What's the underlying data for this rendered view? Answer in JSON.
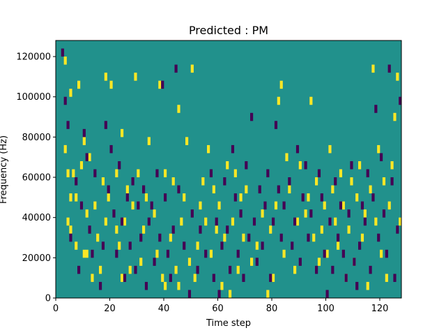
{
  "chart_data": {
    "type": "heatmap",
    "title": "Predicted : PM",
    "xlabel": "Time step",
    "ylabel": "Frequency (Hz)",
    "xlim": [
      0,
      128
    ],
    "ylim": [
      0,
      128000
    ],
    "xticks": [
      0,
      20,
      40,
      60,
      80,
      100,
      120
    ],
    "yticks": [
      0,
      20000,
      40000,
      60000,
      80000,
      100000,
      120000
    ],
    "grid": false,
    "legend": "none",
    "colormap": "viridis",
    "levels": {
      "background": 0,
      "high": 1,
      "low": -1
    },
    "colors": {
      "background": "#21918c",
      "high": "#fde725",
      "low": "#440154"
    },
    "cell_size": {
      "time_steps": 1,
      "frequency_hz": 4000
    },
    "high_cells": [
      [
        3,
        116000
      ],
      [
        3,
        72000
      ],
      [
        4,
        60000
      ],
      [
        4,
        36000
      ],
      [
        5,
        48000
      ],
      [
        5,
        32000
      ],
      [
        5,
        100000
      ],
      [
        6,
        60000
      ],
      [
        7,
        48000
      ],
      [
        7,
        24000
      ],
      [
        8,
        104000
      ],
      [
        9,
        64000
      ],
      [
        10,
        20000
      ],
      [
        10,
        76000
      ],
      [
        11,
        20000
      ],
      [
        11,
        40000
      ],
      [
        12,
        68000
      ],
      [
        13,
        8000
      ],
      [
        14,
        44000
      ],
      [
        15,
        28000
      ],
      [
        16,
        12000
      ],
      [
        17,
        56000
      ],
      [
        18,
        36000
      ],
      [
        18,
        108000
      ],
      [
        19,
        48000
      ],
      [
        20,
        104000
      ],
      [
        22,
        32000
      ],
      [
        22,
        60000
      ],
      [
        23,
        24000
      ],
      [
        24,
        8000
      ],
      [
        24,
        80000
      ],
      [
        25,
        36000
      ],
      [
        26,
        52000
      ],
      [
        27,
        12000
      ],
      [
        28,
        44000
      ],
      [
        29,
        108000
      ],
      [
        30,
        60000
      ],
      [
        31,
        16000
      ],
      [
        32,
        32000
      ],
      [
        33,
        48000
      ],
      [
        34,
        76000
      ],
      [
        36,
        40000
      ],
      [
        37,
        20000
      ],
      [
        38,
        104000
      ],
      [
        39,
        8000
      ],
      [
        40,
        4000
      ],
      [
        40,
        60000
      ],
      [
        42,
        28000
      ],
      [
        43,
        56000
      ],
      [
        44,
        12000
      ],
      [
        45,
        4000
      ],
      [
        45,
        92000
      ],
      [
        46,
        36000
      ],
      [
        47,
        48000
      ],
      [
        48,
        76000
      ],
      [
        49,
        16000
      ],
      [
        50,
        112000
      ],
      [
        51,
        8000
      ],
      [
        52,
        24000
      ],
      [
        53,
        44000
      ],
      [
        54,
        56000
      ],
      [
        55,
        36000
      ],
      [
        56,
        72000
      ],
      [
        57,
        20000
      ],
      [
        58,
        52000
      ],
      [
        59,
        32000
      ],
      [
        60,
        44000
      ],
      [
        61,
        4000
      ],
      [
        62,
        28000
      ],
      [
        63,
        64000
      ],
      [
        64,
        0
      ],
      [
        65,
        36000
      ],
      [
        66,
        60000
      ],
      [
        67,
        12000
      ],
      [
        68,
        48000
      ],
      [
        69,
        28000
      ],
      [
        70,
        52000
      ],
      [
        72,
        16000
      ],
      [
        74,
        24000
      ],
      [
        76,
        40000
      ],
      [
        78,
        0
      ],
      [
        79,
        32000
      ],
      [
        80,
        8000
      ],
      [
        81,
        44000
      ],
      [
        82,
        96000
      ],
      [
        83,
        104000
      ],
      [
        84,
        20000
      ],
      [
        85,
        68000
      ],
      [
        86,
        52000
      ],
      [
        88,
        12000
      ],
      [
        89,
        36000
      ],
      [
        90,
        64000
      ],
      [
        92,
        40000
      ],
      [
        93,
        48000
      ],
      [
        94,
        96000
      ],
      [
        95,
        28000
      ],
      [
        96,
        56000
      ],
      [
        97,
        16000
      ],
      [
        98,
        32000
      ],
      [
        99,
        44000
      ],
      [
        100,
        20000
      ],
      [
        101,
        72000
      ],
      [
        102,
        52000
      ],
      [
        103,
        36000
      ],
      [
        104,
        24000
      ],
      [
        105,
        60000
      ],
      [
        106,
        44000
      ],
      [
        107,
        8000
      ],
      [
        108,
        32000
      ],
      [
        109,
        56000
      ],
      [
        110,
        16000
      ],
      [
        111,
        48000
      ],
      [
        112,
        64000
      ],
      [
        113,
        28000
      ],
      [
        114,
        40000
      ],
      [
        115,
        4000
      ],
      [
        116,
        52000
      ],
      [
        117,
        112000
      ],
      [
        118,
        36000
      ],
      [
        119,
        72000
      ],
      [
        120,
        20000
      ],
      [
        121,
        56000
      ],
      [
        122,
        8000
      ],
      [
        123,
        44000
      ],
      [
        124,
        64000
      ],
      [
        125,
        88000
      ],
      [
        126,
        108000
      ],
      [
        127,
        36000
      ]
    ],
    "low_cells": [
      [
        2,
        120000
      ],
      [
        3,
        96000
      ],
      [
        4,
        84000
      ],
      [
        5,
        28000
      ],
      [
        7,
        56000
      ],
      [
        8,
        12000
      ],
      [
        9,
        44000
      ],
      [
        10,
        80000
      ],
      [
        11,
        68000
      ],
      [
        12,
        32000
      ],
      [
        13,
        20000
      ],
      [
        14,
        60000
      ],
      [
        16,
        4000
      ],
      [
        17,
        24000
      ],
      [
        18,
        84000
      ],
      [
        19,
        52000
      ],
      [
        20,
        72000
      ],
      [
        21,
        40000
      ],
      [
        22,
        20000
      ],
      [
        23,
        64000
      ],
      [
        24,
        36000
      ],
      [
        25,
        8000
      ],
      [
        26,
        48000
      ],
      [
        27,
        24000
      ],
      [
        28,
        56000
      ],
      [
        29,
        12000
      ],
      [
        30,
        44000
      ],
      [
        31,
        28000
      ],
      [
        32,
        52000
      ],
      [
        33,
        4000
      ],
      [
        34,
        36000
      ],
      [
        35,
        44000
      ],
      [
        36,
        16000
      ],
      [
        37,
        60000
      ],
      [
        38,
        28000
      ],
      [
        39,
        104000
      ],
      [
        40,
        48000
      ],
      [
        41,
        20000
      ],
      [
        42,
        8000
      ],
      [
        43,
        32000
      ],
      [
        44,
        112000
      ],
      [
        45,
        52000
      ],
      [
        47,
        24000
      ],
      [
        49,
        0
      ],
      [
        50,
        40000
      ],
      [
        52,
        12000
      ],
      [
        53,
        32000
      ],
      [
        55,
        20000
      ],
      [
        57,
        60000
      ],
      [
        58,
        8000
      ],
      [
        59,
        36000
      ],
      [
        60,
        0
      ],
      [
        61,
        24000
      ],
      [
        62,
        56000
      ],
      [
        63,
        32000
      ],
      [
        64,
        12000
      ],
      [
        65,
        72000
      ],
      [
        66,
        48000
      ],
      [
        67,
        20000
      ],
      [
        68,
        40000
      ],
      [
        69,
        8000
      ],
      [
        70,
        64000
      ],
      [
        71,
        28000
      ],
      [
        72,
        88000
      ],
      [
        73,
        36000
      ],
      [
        74,
        16000
      ],
      [
        75,
        52000
      ],
      [
        76,
        24000
      ],
      [
        77,
        44000
      ],
      [
        78,
        60000
      ],
      [
        79,
        8000
      ],
      [
        80,
        36000
      ],
      [
        81,
        84000
      ],
      [
        82,
        52000
      ],
      [
        83,
        28000
      ],
      [
        84,
        44000
      ],
      [
        86,
        56000
      ],
      [
        87,
        24000
      ],
      [
        88,
        36000
      ],
      [
        89,
        72000
      ],
      [
        90,
        16000
      ],
      [
        91,
        48000
      ],
      [
        92,
        64000
      ],
      [
        93,
        28000
      ],
      [
        94,
        40000
      ],
      [
        96,
        12000
      ],
      [
        97,
        60000
      ],
      [
        98,
        48000
      ],
      [
        99,
        20000
      ],
      [
        100,
        0
      ],
      [
        101,
        36000
      ],
      [
        102,
        12000
      ],
      [
        103,
        56000
      ],
      [
        104,
        28000
      ],
      [
        105,
        44000
      ],
      [
        106,
        20000
      ],
      [
        107,
        8000
      ],
      [
        108,
        40000
      ],
      [
        109,
        64000
      ],
      [
        110,
        16000
      ],
      [
        111,
        4000
      ],
      [
        112,
        24000
      ],
      [
        113,
        44000
      ],
      [
        114,
        36000
      ],
      [
        115,
        60000
      ],
      [
        116,
        12000
      ],
      [
        117,
        48000
      ],
      [
        118,
        92000
      ],
      [
        119,
        28000
      ],
      [
        120,
        68000
      ],
      [
        121,
        40000
      ],
      [
        122,
        20000
      ],
      [
        123,
        112000
      ],
      [
        124,
        56000
      ],
      [
        125,
        8000
      ],
      [
        126,
        32000
      ],
      [
        127,
        96000
      ]
    ]
  }
}
